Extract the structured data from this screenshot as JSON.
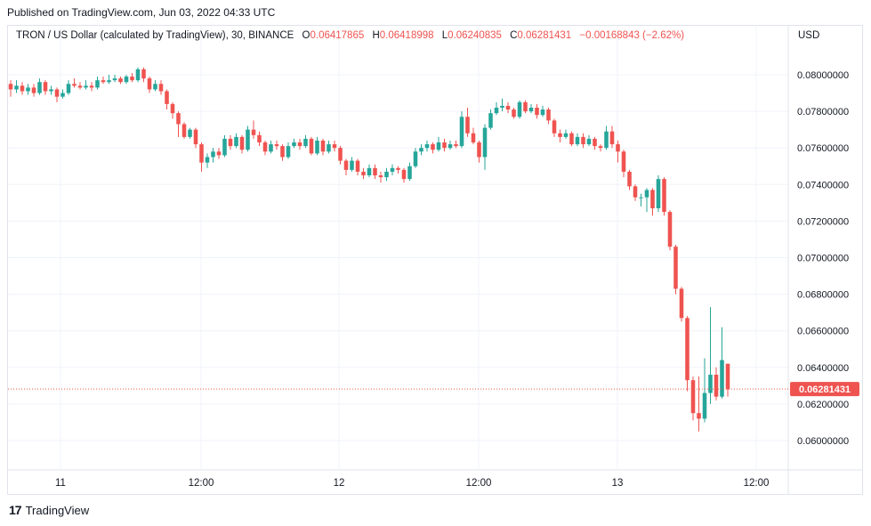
{
  "published": "Published on TradingView.com, Jun 03, 2022 04:33 UTC",
  "legend": {
    "symbol": "TRON / US Dollar (calculated by TradingView), 30, BINANCE",
    "o_label": "O",
    "o_value": "0.06417865",
    "h_label": "H",
    "h_value": "0.06418998",
    "l_label": "L",
    "l_value": "0.06240835",
    "c_label": "C",
    "c_value": "0.06281431",
    "change": "−0.00168843 (−2.62%)"
  },
  "currency": "USD",
  "footer": {
    "brand": "TradingView",
    "logo_icon": "tradingview-logo-icon"
  },
  "colors": {
    "up": "#26a69a",
    "down": "#ef5350",
    "grid": "#f0f3fa",
    "text": "#131722"
  },
  "chart_data": {
    "type": "candlestick",
    "ylim": [
      0.0595,
      0.0815
    ],
    "y_ticks": [
      "0.08000000",
      "0.07800000",
      "0.07600000",
      "0.07400000",
      "0.07200000",
      "0.07000000",
      "0.06800000",
      "0.06600000",
      "0.06400000",
      "0.06200000",
      "0.06000000"
    ],
    "x_ticks": [
      "11",
      "12:00",
      "12",
      "12:00",
      "13",
      "12:00"
    ],
    "last_price": 0.06281431,
    "last_price_label": "0.06281431",
    "candles": [
      [
        0.0795,
        0.0792,
        0.0797,
        0.0788
      ],
      [
        0.0792,
        0.0794,
        0.0797,
        0.079
      ],
      [
        0.0794,
        0.0791,
        0.0796,
        0.0789
      ],
      [
        0.0791,
        0.0793,
        0.0795,
        0.0789
      ],
      [
        0.0793,
        0.079,
        0.0795,
        0.0788
      ],
      [
        0.079,
        0.0796,
        0.0798,
        0.0789
      ],
      [
        0.0796,
        0.0791,
        0.0797,
        0.0789
      ],
      [
        0.0791,
        0.0792,
        0.0794,
        0.0789
      ],
      [
        0.0792,
        0.0788,
        0.0793,
        0.0785
      ],
      [
        0.0788,
        0.079,
        0.0792,
        0.0787
      ],
      [
        0.079,
        0.0795,
        0.0797,
        0.0789
      ],
      [
        0.0795,
        0.0794,
        0.0798,
        0.0793
      ],
      [
        0.0794,
        0.0793,
        0.0796,
        0.0792
      ],
      [
        0.0793,
        0.0794,
        0.0797,
        0.0792
      ],
      [
        0.0794,
        0.0793,
        0.0796,
        0.0791
      ],
      [
        0.0793,
        0.0797,
        0.0799,
        0.0792
      ],
      [
        0.0797,
        0.0796,
        0.0799,
        0.0795
      ],
      [
        0.0796,
        0.0797,
        0.08,
        0.0795
      ],
      [
        0.0797,
        0.0798,
        0.08,
        0.0796
      ],
      [
        0.0798,
        0.0796,
        0.0799,
        0.0795
      ],
      [
        0.0796,
        0.0799,
        0.08,
        0.0795
      ],
      [
        0.0799,
        0.0797,
        0.0801,
        0.0796
      ],
      [
        0.0797,
        0.0803,
        0.0804,
        0.0796
      ],
      [
        0.0803,
        0.0798,
        0.0804,
        0.0796
      ],
      [
        0.0798,
        0.0792,
        0.0799,
        0.079
      ],
      [
        0.0792,
        0.0795,
        0.0797,
        0.0791
      ],
      [
        0.0795,
        0.0791,
        0.0797,
        0.0789
      ],
      [
        0.0791,
        0.0784,
        0.0792,
        0.0781
      ],
      [
        0.0784,
        0.0779,
        0.0785,
        0.0776
      ],
      [
        0.0779,
        0.0773,
        0.078,
        0.0766
      ],
      [
        0.0773,
        0.0766,
        0.0774,
        0.0765
      ],
      [
        0.0766,
        0.077,
        0.0771,
        0.0765
      ],
      [
        0.077,
        0.0762,
        0.0771,
        0.076
      ],
      [
        0.0762,
        0.0752,
        0.0763,
        0.0747
      ],
      [
        0.0752,
        0.0755,
        0.0757,
        0.0749
      ],
      [
        0.0755,
        0.0758,
        0.076,
        0.0752
      ],
      [
        0.0758,
        0.0756,
        0.076,
        0.0754
      ],
      [
        0.0756,
        0.0765,
        0.0767,
        0.0755
      ],
      [
        0.0765,
        0.0761,
        0.0767,
        0.0759
      ],
      [
        0.0761,
        0.0766,
        0.0768,
        0.076
      ],
      [
        0.0766,
        0.0759,
        0.0767,
        0.0757
      ],
      [
        0.0759,
        0.077,
        0.0772,
        0.0758
      ],
      [
        0.077,
        0.0767,
        0.0775,
        0.0765
      ],
      [
        0.0767,
        0.0763,
        0.0769,
        0.0761
      ],
      [
        0.0763,
        0.0758,
        0.0764,
        0.0756
      ],
      [
        0.0758,
        0.0762,
        0.0764,
        0.0757
      ],
      [
        0.0762,
        0.0761,
        0.0764,
        0.0759
      ],
      [
        0.0761,
        0.0755,
        0.0762,
        0.0753
      ],
      [
        0.0755,
        0.0761,
        0.0763,
        0.0754
      ],
      [
        0.0761,
        0.0763,
        0.0765,
        0.076
      ],
      [
        0.0763,
        0.0761,
        0.0765,
        0.0759
      ],
      [
        0.0761,
        0.0765,
        0.0767,
        0.076
      ],
      [
        0.0765,
        0.0757,
        0.0766,
        0.0756
      ],
      [
        0.0757,
        0.0764,
        0.0766,
        0.0756
      ],
      [
        0.0764,
        0.0758,
        0.0765,
        0.0756
      ],
      [
        0.0758,
        0.0762,
        0.0764,
        0.0757
      ],
      [
        0.0762,
        0.076,
        0.0764,
        0.0758
      ],
      [
        0.076,
        0.0753,
        0.0761,
        0.0751
      ],
      [
        0.0753,
        0.0748,
        0.0754,
        0.0745
      ],
      [
        0.0748,
        0.0753,
        0.0755,
        0.0747
      ],
      [
        0.0753,
        0.0747,
        0.0754,
        0.0745
      ],
      [
        0.0747,
        0.0745,
        0.0749,
        0.0743
      ],
      [
        0.0745,
        0.0749,
        0.0751,
        0.0744
      ],
      [
        0.0749,
        0.0745,
        0.0751,
        0.0743
      ],
      [
        0.0745,
        0.0744,
        0.0747,
        0.0741
      ],
      [
        0.0744,
        0.0747,
        0.0749,
        0.0742
      ],
      [
        0.0747,
        0.0749,
        0.0751,
        0.0745
      ],
      [
        0.0749,
        0.0748,
        0.075,
        0.0746
      ],
      [
        0.0748,
        0.0743,
        0.0749,
        0.0741
      ],
      [
        0.0743,
        0.075,
        0.0752,
        0.0742
      ],
      [
        0.075,
        0.0758,
        0.076,
        0.0749
      ],
      [
        0.0758,
        0.076,
        0.0762,
        0.0756
      ],
      [
        0.076,
        0.0762,
        0.0764,
        0.0758
      ],
      [
        0.0762,
        0.0759,
        0.0763,
        0.0757
      ],
      [
        0.0759,
        0.0763,
        0.0766,
        0.0758
      ],
      [
        0.0763,
        0.076,
        0.0765,
        0.0758
      ],
      [
        0.076,
        0.0762,
        0.0764,
        0.0759
      ],
      [
        0.0762,
        0.0761,
        0.0764,
        0.076
      ],
      [
        0.0761,
        0.0777,
        0.078,
        0.076
      ],
      [
        0.0777,
        0.0768,
        0.0782,
        0.0766
      ],
      [
        0.0768,
        0.0763,
        0.0771,
        0.0762
      ],
      [
        0.0763,
        0.0755,
        0.0764,
        0.0752
      ],
      [
        0.0755,
        0.0771,
        0.0773,
        0.0748
      ],
      [
        0.0771,
        0.0779,
        0.0781,
        0.077
      ],
      [
        0.0779,
        0.0782,
        0.0785,
        0.0778
      ],
      [
        0.0782,
        0.0783,
        0.0787,
        0.078
      ],
      [
        0.0783,
        0.0781,
        0.0785,
        0.0779
      ],
      [
        0.0781,
        0.0777,
        0.0782,
        0.0776
      ],
      [
        0.0777,
        0.0785,
        0.0786,
        0.0776
      ],
      [
        0.0785,
        0.078,
        0.0786,
        0.0779
      ],
      [
        0.078,
        0.0782,
        0.0784,
        0.0779
      ],
      [
        0.0782,
        0.0778,
        0.0784,
        0.0776
      ],
      [
        0.0778,
        0.0781,
        0.0783,
        0.0777
      ],
      [
        0.0781,
        0.0775,
        0.0782,
        0.0773
      ],
      [
        0.0775,
        0.0768,
        0.0776,
        0.0766
      ],
      [
        0.0768,
        0.0766,
        0.077,
        0.0763
      ],
      [
        0.0766,
        0.0768,
        0.077,
        0.0765
      ],
      [
        0.0768,
        0.0762,
        0.0769,
        0.0761
      ],
      [
        0.0762,
        0.0766,
        0.0768,
        0.0761
      ],
      [
        0.0766,
        0.0762,
        0.0768,
        0.076
      ],
      [
        0.0762,
        0.0765,
        0.0767,
        0.0761
      ],
      [
        0.0765,
        0.0761,
        0.0766,
        0.0759
      ],
      [
        0.0761,
        0.076,
        0.0762,
        0.0758
      ],
      [
        0.076,
        0.0769,
        0.0772,
        0.0759
      ],
      [
        0.0769,
        0.0762,
        0.0772,
        0.076
      ],
      [
        0.0762,
        0.0758,
        0.0764,
        0.0752
      ],
      [
        0.0758,
        0.0747,
        0.0759,
        0.0744
      ],
      [
        0.0747,
        0.0739,
        0.0748,
        0.0737
      ],
      [
        0.0739,
        0.0733,
        0.074,
        0.0731
      ],
      [
        0.0733,
        0.0733,
        0.0735,
        0.0728
      ],
      [
        0.0733,
        0.0737,
        0.0738,
        0.0725
      ],
      [
        0.0737,
        0.0727,
        0.0738,
        0.0723
      ],
      [
        0.0727,
        0.0743,
        0.0745,
        0.0725
      ],
      [
        0.0743,
        0.0725,
        0.0744,
        0.0723
      ],
      [
        0.0725,
        0.0706,
        0.0726,
        0.0704
      ],
      [
        0.0706,
        0.0683,
        0.0707,
        0.068
      ],
      [
        0.0683,
        0.0667,
        0.0684,
        0.0665
      ],
      [
        0.0667,
        0.0633,
        0.0668,
        0.0627
      ],
      [
        0.0633,
        0.0615,
        0.0635,
        0.0611
      ],
      [
        0.0615,
        0.0612,
        0.0635,
        0.0605
      ],
      [
        0.0612,
        0.0626,
        0.0645,
        0.061
      ],
      [
        0.0626,
        0.0636,
        0.0673,
        0.062
      ],
      [
        0.0636,
        0.0624,
        0.064,
        0.0622
      ],
      [
        0.0624,
        0.0644,
        0.0662,
        0.0623
      ],
      [
        0.0642,
        0.0628,
        0.0642,
        0.0624
      ]
    ]
  }
}
